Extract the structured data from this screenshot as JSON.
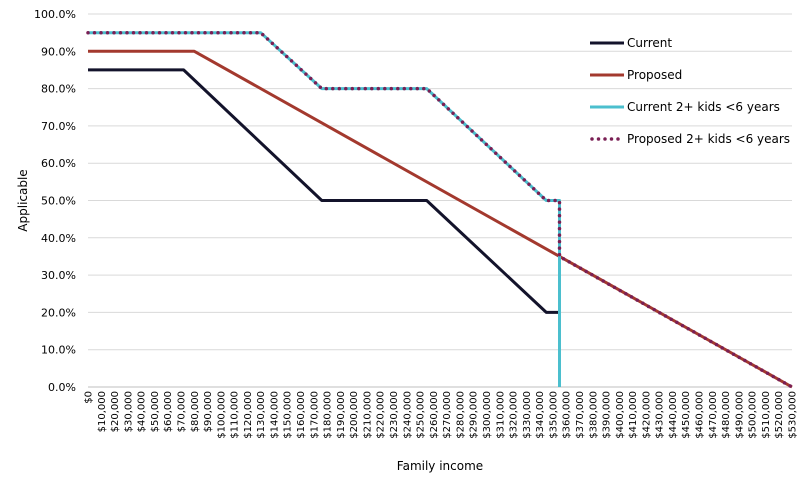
{
  "chart_data": {
    "type": "line",
    "title": "",
    "xlabel": "Family income",
    "ylabel": "Applicable",
    "ylim": [
      0,
      100
    ],
    "yticks": [
      "0.0%",
      "10.0%",
      "20.0%",
      "30.0%",
      "40.0%",
      "50.0%",
      "60.0%",
      "70.0%",
      "80.0%",
      "90.0%",
      "100.0%"
    ],
    "xlim": [
      0,
      530000
    ],
    "xticks": [
      "$0",
      "$10,000",
      "$20,000",
      "$30,000",
      "$40,000",
      "$50,000",
      "$60,000",
      "$70,000",
      "$80,000",
      "$90,000",
      "$100,000",
      "$110,000",
      "$120,000",
      "$130,000",
      "$140,000",
      "$150,000",
      "$160,000",
      "$170,000",
      "$180,000",
      "$190,000",
      "$200,000",
      "$210,000",
      "$220,000",
      "$230,000",
      "$240,000",
      "$250,000",
      "$260,000",
      "$270,000",
      "$280,000",
      "$290,000",
      "$300,000",
      "$310,000",
      "$320,000",
      "$330,000",
      "$340,000",
      "$350,000",
      "$360,000",
      "$370,000",
      "$380,000",
      "$390,000",
      "$400,000",
      "$410,000",
      "$420,000",
      "$430,000",
      "$440,000",
      "$450,000",
      "$460,000",
      "$470,000",
      "$480,000",
      "$490,000",
      "$500,000",
      "$510,000",
      "$520,000",
      "$530,000"
    ],
    "grid": "horizontal",
    "legend_position": "right",
    "series": [
      {
        "name": "Current",
        "color": "#13132b",
        "style": "solid",
        "points": [
          [
            0,
            85
          ],
          [
            72000,
            85
          ],
          [
            176000,
            50
          ],
          [
            255000,
            50
          ],
          [
            345000,
            20
          ],
          [
            355000,
            20
          ],
          [
            355000,
            0
          ]
        ]
      },
      {
        "name": "Proposed",
        "color": "#a3392e",
        "style": "solid",
        "points": [
          [
            0,
            90
          ],
          [
            80000,
            90
          ],
          [
            530000,
            0
          ]
        ]
      },
      {
        "name": "Current 2+ kids <6 years",
        "color": "#4bbfce",
        "style": "solid",
        "points": [
          [
            0,
            95
          ],
          [
            130000,
            95
          ],
          [
            176000,
            80
          ],
          [
            255000,
            80
          ],
          [
            345000,
            50
          ],
          [
            355000,
            50
          ],
          [
            355000,
            0
          ]
        ]
      },
      {
        "name": "Proposed 2+ kids <6 years",
        "color": "#7a1f54",
        "style": "dotted",
        "points": [
          [
            0,
            95
          ],
          [
            130000,
            95
          ],
          [
            176000,
            80
          ],
          [
            255000,
            80
          ],
          [
            345000,
            50
          ],
          [
            355000,
            50
          ],
          [
            355000,
            35
          ],
          [
            530000,
            0
          ]
        ]
      }
    ]
  }
}
